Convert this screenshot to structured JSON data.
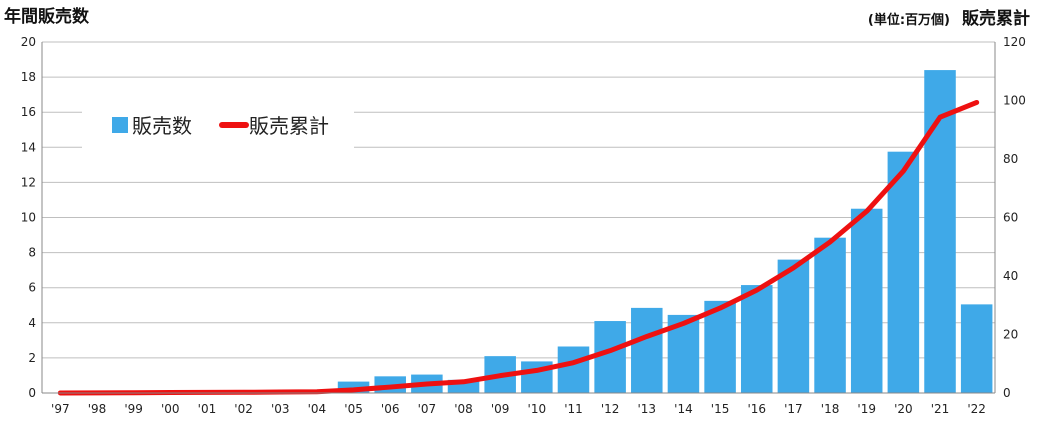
{
  "chart_data": {
    "type": "bar",
    "left_axis_title": "年間販売数",
    "right_axis_title": "販売累計",
    "unit_note": "(単位:百万個)",
    "categories": [
      "'97",
      "'98",
      "'99",
      "'00",
      "'01",
      "'02",
      "'03",
      "'04",
      "'05",
      "'06",
      "'07",
      "'08",
      "'09",
      "'10",
      "'11",
      "'12",
      "'13",
      "'14",
      "'15",
      "'16",
      "'17",
      "'18",
      "'19",
      "'20",
      "'21",
      "'22"
    ],
    "series": [
      {
        "name": "販売数",
        "axis": "left",
        "kind": "bar",
        "color": "#3fa9e8",
        "values": [
          0.02,
          0.03,
          0.05,
          0.05,
          0.05,
          0.05,
          0.08,
          0.1,
          0.65,
          0.95,
          1.05,
          0.75,
          2.1,
          1.8,
          2.65,
          4.1,
          4.85,
          4.45,
          5.25,
          6.15,
          7.6,
          8.85,
          10.5,
          13.75,
          18.4,
          5.05
        ]
      },
      {
        "name": "販売累計",
        "axis": "right",
        "kind": "line",
        "color": "#ee1111",
        "values": [
          0.02,
          0.05,
          0.1,
          0.15,
          0.2,
          0.25,
          0.33,
          0.43,
          1.08,
          2.03,
          3.08,
          3.83,
          5.93,
          7.73,
          10.38,
          14.48,
          19.33,
          23.78,
          29.03,
          35.18,
          42.78,
          51.63,
          62.13,
          75.88,
          94.28,
          99.33
        ]
      }
    ],
    "y_left": {
      "min": 0,
      "max": 20,
      "ticks": [
        0,
        2,
        4,
        6,
        8,
        10,
        12,
        14,
        16,
        18,
        20
      ]
    },
    "y_right": {
      "min": 0,
      "max": 120,
      "ticks": [
        0,
        20,
        40,
        60,
        80,
        100,
        120
      ]
    },
    "grid": true,
    "legend_position": "top-left"
  }
}
